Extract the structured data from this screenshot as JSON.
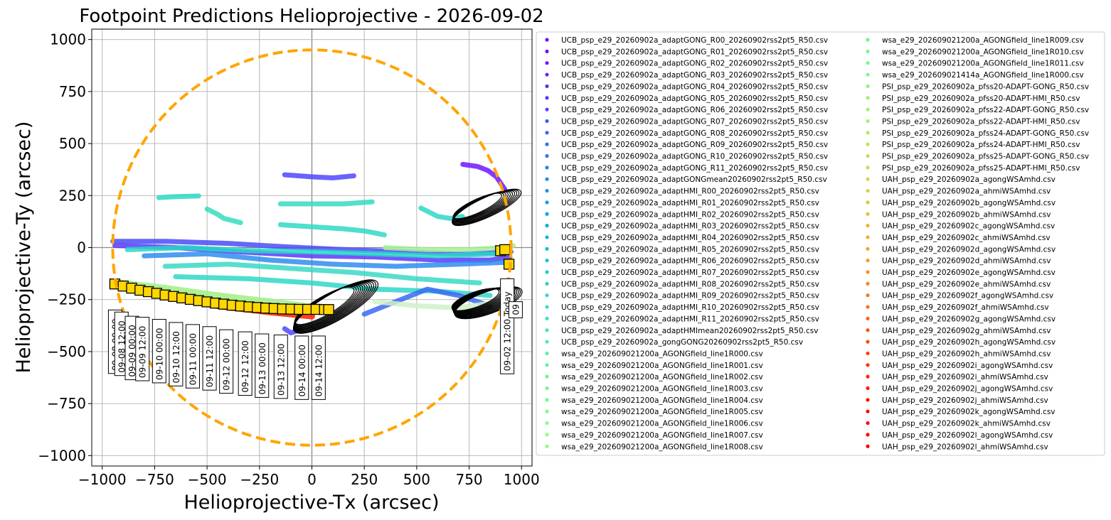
{
  "chart_data": {
    "type": "scatter",
    "title": "Footpoint Predictions Helioprojective - 2026-09-02",
    "xlabel": "Helioprojective-Tx (arcsec)",
    "ylabel": "Helioprojective-Ty (arcsec)",
    "xlim": [
      -1050,
      1050
    ],
    "ylim": [
      -1050,
      1050
    ],
    "x_ticks": [
      -1000,
      -750,
      -500,
      -250,
      0,
      250,
      500,
      750,
      1000
    ],
    "y_ticks": [
      -1000,
      -750,
      -500,
      -250,
      0,
      250,
      500,
      750,
      1000
    ],
    "x_tick_labels": [
      "−1000",
      "−750",
      "−500",
      "−250",
      "0",
      "250",
      "500",
      "750",
      "1000"
    ],
    "y_tick_labels": [
      "−1000",
      "−750",
      "−500",
      "−250",
      "0",
      "250",
      "500",
      "750",
      "1000"
    ],
    "grid": true,
    "legend_position": "right, outside plot",
    "solar_limb": {
      "radius": 950,
      "color": "#FFA500",
      "style": "dashed"
    },
    "series": [
      {
        "name": "UCB_psp_e29_20260902a_adaptGONG_R00_20260902rss2pt5_R50.csv",
        "color": "#7f00ff"
      },
      {
        "name": "UCB_psp_e29_20260902a_adaptGONG_R01_20260902rss2pt5_R50.csv",
        "color": "#770bff"
      },
      {
        "name": "UCB_psp_e29_20260902a_adaptGONG_R02_20260902rss2pt5_R50.csv",
        "color": "#6f18fe"
      },
      {
        "name": "UCB_psp_e29_20260902a_adaptGONG_R03_20260902rss2pt5_R50.csv",
        "color": "#6724fe"
      },
      {
        "name": "UCB_psp_e29_20260902a_adaptGONG_R04_20260902rss2pt5_R50.csv",
        "color": "#5f30fd"
      },
      {
        "name": "UCB_psp_e29_20260902a_adaptGONG_R05_20260902rss2pt5_R50.csv",
        "color": "#573cfc"
      },
      {
        "name": "UCB_psp_e29_20260902a_adaptGONG_R06_20260902rss2pt5_R50.csv",
        "color": "#4f48fb"
      },
      {
        "name": "UCB_psp_e29_20260902a_adaptGONG_R07_20260902rss2pt5_R50.csv",
        "color": "#4754f9"
      },
      {
        "name": "UCB_psp_e29_20260902a_adaptGONG_R08_20260902rss2pt5_R50.csv",
        "color": "#3f5ff7"
      },
      {
        "name": "UCB_psp_e29_20260902a_adaptGONG_R09_20260902rss2pt5_R50.csv",
        "color": "#376af5"
      },
      {
        "name": "UCB_psp_e29_20260902a_adaptGONG_R10_20260902rss2pt5_R50.csv",
        "color": "#2f75f3"
      },
      {
        "name": "UCB_psp_e29_20260902a_adaptGONG_R11_20260902rss2pt5_R50.csv",
        "color": "#2780f0"
      },
      {
        "name": "UCB_psp_e29_20260902a_adaptGONGmean20260902rss2pt5_R50.csv",
        "color": "#1f8aed"
      },
      {
        "name": "UCB_psp_e29_20260902a_adaptHMI_R00_20260902rss2pt5_R50.csv",
        "color": "#1794ea"
      },
      {
        "name": "UCB_psp_e29_20260902a_adaptHMI_R01_20260902rss2pt5_R50.csv",
        "color": "#0f9de7"
      },
      {
        "name": "UCB_psp_e29_20260902a_adaptHMI_R02_20260902rss2pt5_R50.csv",
        "color": "#07a6e3"
      },
      {
        "name": "UCB_psp_e29_20260902a_adaptHMI_R03_20260902rss2pt5_R50.csv",
        "color": "#00afdf"
      },
      {
        "name": "UCB_psp_e29_20260902a_adaptHMI_R04_20260902rss2pt5_R50.csv",
        "color": "#08b7db"
      },
      {
        "name": "UCB_psp_e29_20260902a_adaptHMI_R05_20260902rss2pt5_R50.csv",
        "color": "#10bfd7"
      },
      {
        "name": "UCB_psp_e29_20260902a_adaptHMI_R06_20260902rss2pt5_R50.csv",
        "color": "#18c6d2"
      },
      {
        "name": "UCB_psp_e29_20260902a_adaptHMI_R07_20260902rss2pt5_R50.csv",
        "color": "#20cdce"
      },
      {
        "name": "UCB_psp_e29_20260902a_adaptHMI_R08_20260902rss2pt5_R50.csv",
        "color": "#28d3c9"
      },
      {
        "name": "UCB_psp_e29_20260902a_adaptHMI_R09_20260902rss2pt5_R50.csv",
        "color": "#30d9c4"
      },
      {
        "name": "UCB_psp_e29_20260902a_adaptHMI_R10_20260902rss2pt5_R50.csv",
        "color": "#38dfbe"
      },
      {
        "name": "UCB_psp_e29_20260902a_adaptHMI_R11_20260902rss2pt5_R50.csv",
        "color": "#40e3b9"
      },
      {
        "name": "UCB_psp_e29_20260902a_adaptHMImean20260902rss2pt5_R50.csv",
        "color": "#48e8b4"
      },
      {
        "name": "UCB_psp_e29_20260902a_gongGONG20260902rss2pt5_R50.csv",
        "color": "#50ecae"
      },
      {
        "name": "wsa_e29_202609021200a_AGONGfield_line1R000.csv",
        "color": "#58efa8"
      },
      {
        "name": "wsa_e29_202609021200a_AGONGfield_line1R001.csv",
        "color": "#60f2a3"
      },
      {
        "name": "wsa_e29_202609021200a_AGONGfield_line1R002.csv",
        "color": "#68f59d"
      },
      {
        "name": "wsa_e29_202609021200a_AGONGfield_line1R003.csv",
        "color": "#70f797"
      },
      {
        "name": "wsa_e29_202609021200a_AGONGfield_line1R004.csv",
        "color": "#78f991"
      },
      {
        "name": "wsa_e29_202609021200a_AGONGfield_line1R005.csv",
        "color": "#80fa8b"
      },
      {
        "name": "wsa_e29_202609021200a_AGONGfield_line1R006.csv",
        "color": "#88fc85"
      },
      {
        "name": "wsa_e29_202609021200a_AGONGfield_line1R007.csv",
        "color": "#90fd7e"
      },
      {
        "name": "wsa_e29_202609021200a_AGONGfield_line1R008.csv",
        "color": "#98fe78"
      },
      {
        "name": "wsa_e29_202609021200a_AGONGfield_line1R009.csv",
        "color": "#6ff2a0"
      },
      {
        "name": "wsa_e29_202609021200a_AGONGfield_line1R010.csv",
        "color": "#78f491"
      },
      {
        "name": "wsa_e29_202609021200a_AGONGfield_line1R011.csv",
        "color": "#80f58b"
      },
      {
        "name": "wsa_e29_202609021414a_AGONGfield_line1R000.csv",
        "color": "#88f585"
      },
      {
        "name": "PSI_psp_e29_20260902a_pfss20-ADAPT-GONG_R50.csv",
        "color": "#90f57e"
      },
      {
        "name": "PSI_psp_e29_20260902a_pfss20-ADAPT-HMI_R50.csv",
        "color": "#98f478"
      },
      {
        "name": "PSI_psp_e29_20260902a_pfss22-ADAPT-GONG_R50.csv",
        "color": "#a0f271"
      },
      {
        "name": "PSI_psp_e29_20260902a_pfss22-ADAPT-HMI_R50.csv",
        "color": "#a8ef6a"
      },
      {
        "name": "PSI_psp_e29_20260902a_pfss24-ADAPT-GONG_R50.csv",
        "color": "#b0ec64"
      },
      {
        "name": "PSI_psp_e29_20260902a_pfss24-ADAPT-HMI_R50.csv",
        "color": "#b8e85d"
      },
      {
        "name": "PSI_psp_e29_20260902a_pfss25-ADAPT-GONG_R50.csv",
        "color": "#c0e356"
      },
      {
        "name": "PSI_psp_e29_20260902a_pfss25-ADAPT-HMI_R50.csv",
        "color": "#c8de50"
      },
      {
        "name": "UAH_psp_e29_20260902a_agongWSAmhd.csv",
        "color": "#d0d84a"
      },
      {
        "name": "UAH_psp_e29_20260902a_ahmiWSAmhd.csv",
        "color": "#d8d044"
      },
      {
        "name": "UAH_psp_e29_20260902b_agongWSAmhd.csv",
        "color": "#e0c83e"
      },
      {
        "name": "UAH_psp_e29_20260902b_ahmiWSAmhd.csv",
        "color": "#e8c038"
      },
      {
        "name": "UAH_psp_e29_20260902c_agongWSAmhd.csv",
        "color": "#efb732"
      },
      {
        "name": "UAH_psp_e29_20260902c_ahmiWSAmhd.csv",
        "color": "#f3ad2d"
      },
      {
        "name": "UAH_psp_e29_20260902d_agongWSAmhd.csv",
        "color": "#f6a328"
      },
      {
        "name": "UAH_psp_e29_20260902d_ahmiWSAmhd.csv",
        "color": "#f89924"
      },
      {
        "name": "UAH_psp_e29_20260902e_agongWSAmhd.csv",
        "color": "#fa8f1f"
      },
      {
        "name": "UAH_psp_e29_20260902e_ahmiWSAmhd.csv",
        "color": "#fb841b"
      },
      {
        "name": "UAH_psp_e29_20260902f_agongWSAmhd.csv",
        "color": "#fc7917"
      },
      {
        "name": "UAH_psp_e29_20260902f_ahmiWSAmhd.csv",
        "color": "#fd6e13"
      },
      {
        "name": "UAH_psp_e29_20260902g_agongWSAmhd.csv",
        "color": "#fe630f"
      },
      {
        "name": "UAH_psp_e29_20260902g_ahmiWSAmhd.csv",
        "color": "#fe570c"
      },
      {
        "name": "UAH_psp_e29_20260902h_agongWSAmhd.csv",
        "color": "#ff4b09"
      },
      {
        "name": "UAH_psp_e29_20260902h_ahmiWSAmhd.csv",
        "color": "#ff3f06"
      },
      {
        "name": "UAH_psp_e29_20260902i_agongWSAmhd.csv",
        "color": "#ff3304"
      },
      {
        "name": "UAH_psp_e29_20260902i_ahmiWSAmhd.csv",
        "color": "#ff2702"
      },
      {
        "name": "UAH_psp_e29_20260902j_agongWSAmhd.csv",
        "color": "#ff1b01"
      },
      {
        "name": "UAH_psp_e29_20260902j_ahmiWSAmhd.csv",
        "color": "#ff1000"
      },
      {
        "name": "UAH_psp_e29_20260902k_agongWSAmhd.csv",
        "color": "#ff0800"
      },
      {
        "name": "UAH_psp_e29_20260902k_ahmiWSAmhd.csv",
        "color": "#ff0400"
      },
      {
        "name": "UAH_psp_e29_20260902l_agongWSAmhd.csv",
        "color": "#ff0200"
      },
      {
        "name": "UAH_psp_e29_20260902l_ahmiWSAmhd.csv",
        "color": "#ff0000"
      }
    ],
    "footpoint_bands": [
      {
        "color": "#4a4cf8",
        "points": [
          [
            -950,
            30
          ],
          [
            -700,
            30
          ],
          [
            -400,
            20
          ],
          [
            -150,
            5
          ],
          [
            150,
            -10
          ],
          [
            450,
            -20
          ],
          [
            700,
            -30
          ],
          [
            950,
            -20
          ]
        ]
      },
      {
        "color": "#5b38fc",
        "points": [
          [
            -940,
            10
          ],
          [
            -650,
            0
          ],
          [
            -350,
            -20
          ],
          [
            0,
            -40
          ],
          [
            300,
            -45
          ],
          [
            600,
            -60
          ],
          [
            850,
            -60
          ],
          [
            950,
            -45
          ]
        ]
      },
      {
        "color": "#2f8df0",
        "points": [
          [
            -800,
            -40
          ],
          [
            -500,
            -30
          ],
          [
            -200,
            -60
          ],
          [
            100,
            -80
          ],
          [
            400,
            -90
          ],
          [
            700,
            -80
          ],
          [
            950,
            -70
          ]
        ]
      },
      {
        "color": "#27d8c8",
        "points": [
          [
            -880,
            -10
          ],
          [
            -600,
            0
          ],
          [
            -300,
            -15
          ],
          [
            0,
            -20
          ],
          [
            300,
            -30
          ],
          [
            600,
            -40
          ],
          [
            900,
            -30
          ]
        ]
      },
      {
        "color": "#3ad9c4",
        "points": [
          [
            -700,
            -90
          ],
          [
            -400,
            -80
          ],
          [
            -100,
            -100
          ],
          [
            200,
            -120
          ],
          [
            500,
            -150
          ],
          [
            800,
            -170
          ]
        ]
      },
      {
        "color": "#30d7c8",
        "points": [
          [
            -650,
            -140
          ],
          [
            -300,
            -150
          ],
          [
            0,
            -170
          ],
          [
            300,
            -200
          ],
          [
            600,
            -210
          ],
          [
            850,
            -230
          ]
        ]
      },
      {
        "color": "#3a6af4",
        "points": [
          [
            250,
            -320
          ],
          [
            400,
            -260
          ],
          [
            550,
            -200
          ],
          [
            700,
            -230
          ],
          [
            850,
            -280
          ]
        ]
      },
      {
        "color": "#2fd9c4",
        "points": [
          [
            -150,
            110
          ],
          [
            0,
            100
          ],
          [
            150,
            90
          ],
          [
            250,
            80
          ],
          [
            350,
            60
          ]
        ]
      },
      {
        "color": "#35dbc2",
        "points": [
          [
            -150,
            210
          ],
          [
            0,
            210
          ],
          [
            150,
            210
          ],
          [
            290,
            220
          ]
        ]
      },
      {
        "color": "#4f48fb",
        "points": [
          [
            -130,
            350
          ],
          [
            0,
            340
          ],
          [
            100,
            335
          ],
          [
            200,
            345
          ]
        ]
      },
      {
        "color": "#36dcc0",
        "points": [
          [
            -500,
            185
          ],
          [
            -450,
            160
          ],
          [
            -420,
            140
          ],
          [
            -380,
            130
          ],
          [
            -340,
            120
          ]
        ]
      },
      {
        "color": "#2fd8c8",
        "points": [
          [
            -730,
            240
          ],
          [
            -650,
            245
          ],
          [
            -540,
            248
          ]
        ]
      },
      {
        "color": "#6f18fe",
        "points": [
          [
            720,
            400
          ],
          [
            790,
            390
          ],
          [
            840,
            370
          ],
          [
            880,
            340
          ],
          [
            920,
            280
          ]
        ]
      },
      {
        "color": "#30d6c9",
        "points": [
          [
            520,
            190
          ],
          [
            560,
            170
          ],
          [
            600,
            150
          ],
          [
            660,
            140
          ],
          [
            720,
            150
          ]
        ]
      },
      {
        "color": "#a8ef9a",
        "points": [
          [
            350,
            0
          ],
          [
            550,
            -10
          ],
          [
            750,
            -10
          ],
          [
            900,
            0
          ],
          [
            960,
            10
          ]
        ]
      },
      {
        "color": "#d0f0c8",
        "points": [
          [
            300,
            -260
          ],
          [
            500,
            -280
          ],
          [
            700,
            -290
          ],
          [
            900,
            -260
          ]
        ]
      },
      {
        "color": "#4f48fb",
        "points": [
          [
            -130,
            -390
          ],
          [
            -100,
            -410
          ],
          [
            -70,
            -400
          ]
        ]
      }
    ],
    "trajectory_red_band": [
      [
        -950,
        -180
      ],
      [
        -700,
        -235
      ],
      [
        -450,
        -280
      ],
      [
        -200,
        -310
      ],
      [
        0,
        -330
      ]
    ],
    "trajectory_green_band": [
      [
        -950,
        -165
      ],
      [
        -700,
        -195
      ],
      [
        -450,
        -230
      ],
      [
        -200,
        -260
      ],
      [
        0,
        -285
      ]
    ],
    "trajectory_squares": {
      "color": "#FFD700",
      "points": [
        [
          -940,
          -175
        ],
        [
          -900,
          -185
        ],
        [
          -860,
          -195
        ],
        [
          -820,
          -205
        ],
        [
          -780,
          -212
        ],
        [
          -740,
          -220
        ],
        [
          -700,
          -228
        ],
        [
          -660,
          -235
        ],
        [
          -620,
          -242
        ],
        [
          -580,
          -249
        ],
        [
          -540,
          -255
        ],
        [
          -500,
          -261
        ],
        [
          -460,
          -267
        ],
        [
          -420,
          -272
        ],
        [
          -380,
          -277
        ],
        [
          -340,
          -281
        ],
        [
          -300,
          -285
        ],
        [
          -260,
          -288
        ],
        [
          -220,
          -291
        ],
        [
          -180,
          -293
        ],
        [
          -140,
          -295
        ],
        [
          -100,
          -296
        ],
        [
          -60,
          -297
        ],
        [
          -20,
          -297
        ],
        [
          20,
          -297
        ],
        [
          60,
          -298
        ],
        [
          80,
          -298
        ],
        [
          900,
          -15
        ],
        [
          920,
          -10
        ],
        [
          940,
          -80
        ]
      ]
    },
    "field_line_loops": [
      {
        "center": [
          60,
          -280
        ],
        "rx": 230,
        "ry": 55,
        "rotation": -30,
        "count": 12
      },
      {
        "center": [
          790,
          200
        ],
        "rx": 180,
        "ry": 40,
        "rotation": -25,
        "count": 10
      },
      {
        "center": [
          780,
          -250
        ],
        "rx": 170,
        "ry": 45,
        "rotation": -20,
        "count": 14
      }
    ],
    "date_labels": [
      {
        "text": "09-08 00:00",
        "x": -940,
        "y": -300
      },
      {
        "text": "09-08 12:00",
        "x": -910,
        "y": -310
      },
      {
        "text": "09-09 00:00",
        "x": -860,
        "y": -330
      },
      {
        "text": "09-09 12:00",
        "x": -810,
        "y": -335
      },
      {
        "text": "09-10 00:00",
        "x": -730,
        "y": -345
      },
      {
        "text": "09-10 12:00",
        "x": -650,
        "y": -360
      },
      {
        "text": "09-11 00:00",
        "x": -570,
        "y": -370
      },
      {
        "text": "09-11 12:00",
        "x": -490,
        "y": -380
      },
      {
        "text": "09-12 00:00",
        "x": -410,
        "y": -395
      },
      {
        "text": "09-12 12:00",
        "x": -320,
        "y": -405
      },
      {
        "text": "09-13 00:00",
        "x": -240,
        "y": -415
      },
      {
        "text": "09-13 12:00",
        "x": -150,
        "y": -420
      },
      {
        "text": "09-14 00:00",
        "x": -50,
        "y": -425
      },
      {
        "text": "09-14 12:00",
        "x": 30,
        "y": -425
      },
      {
        "text": "09-02 12:00 Today",
        "x": 930,
        "y": -150
      },
      {
        "text": "09",
        "x": 970,
        "y": -260
      }
    ]
  }
}
